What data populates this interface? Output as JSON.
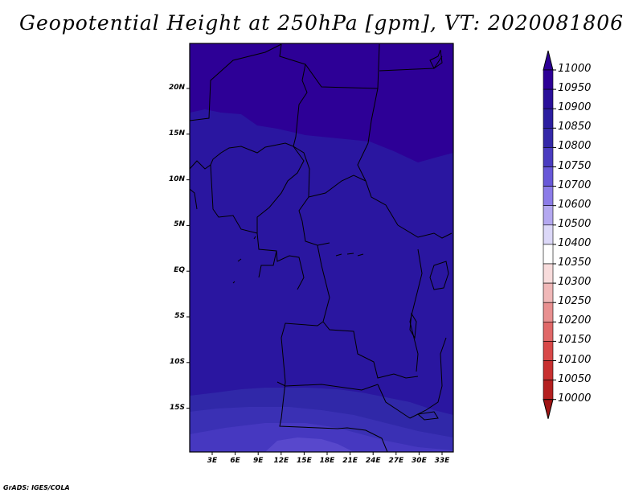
{
  "title": "Geopotential Height at 250hPa [gpm], VT: 2020081806",
  "credit": "GrADS: IGES/COLA",
  "map": {
    "lat_labels": [
      "20N",
      "15N",
      "10N",
      "5N",
      "EQ",
      "5S",
      "10S",
      "15S"
    ],
    "lon_labels": [
      "3E",
      "6E",
      "9E",
      "12E",
      "15E",
      "18E",
      "21E",
      "24E",
      "27E",
      "30E",
      "33E"
    ]
  },
  "colorbar": {
    "labels": [
      "11000",
      "10950",
      "10900",
      "10850",
      "10800",
      "10750",
      "10700",
      "10600",
      "10500",
      "10400",
      "10350",
      "10300",
      "10250",
      "10200",
      "10150",
      "10100",
      "10050",
      "10000"
    ],
    "colors": [
      "#2d0096",
      "#2a109a",
      "#2c1ea0",
      "#3428a8",
      "#4a3cc0",
      "#6858d8",
      "#8c7ce8",
      "#b4a8f0",
      "#dcd8f8",
      "#ffffff",
      "#f8dcdc",
      "#f0b8b8",
      "#e89090",
      "#e06868",
      "#d84848",
      "#c83030",
      "#b42020",
      "#a01414"
    ]
  },
  "field": {
    "bands": [
      {
        "level": "10950",
        "color": "#2d0096"
      },
      {
        "level": "10900",
        "color": "#2a16a0"
      },
      {
        "level": "10850",
        "color": "#3028a8"
      },
      {
        "level": "10800",
        "color": "#3a30b4"
      },
      {
        "level": "10750",
        "color": "#4638c0"
      },
      {
        "level": "10700",
        "color": "#5848cc"
      }
    ]
  }
}
